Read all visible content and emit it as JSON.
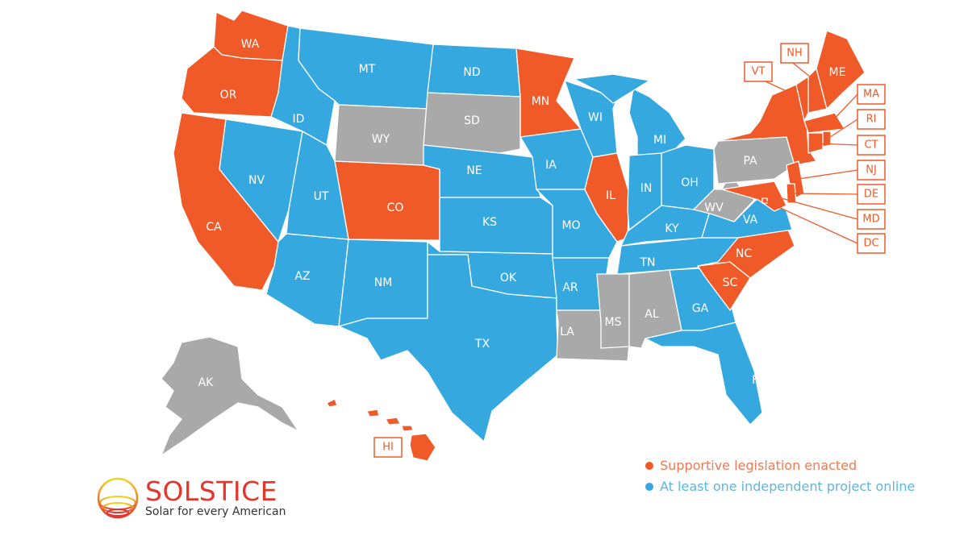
{
  "colors": {
    "supportive": "#ef5a28",
    "online": "#35a8e0",
    "none": "#a9a9a9"
  },
  "states": [
    {
      "code": "WA",
      "status": "supportive"
    },
    {
      "code": "OR",
      "status": "supportive"
    },
    {
      "code": "CA",
      "status": "supportive"
    },
    {
      "code": "NV",
      "status": "online"
    },
    {
      "code": "ID",
      "status": "online"
    },
    {
      "code": "MT",
      "status": "online"
    },
    {
      "code": "WY",
      "status": "none"
    },
    {
      "code": "ND",
      "status": "online"
    },
    {
      "code": "SD",
      "status": "none"
    },
    {
      "code": "NE",
      "status": "online"
    },
    {
      "code": "CO",
      "status": "supportive"
    },
    {
      "code": "UT",
      "status": "online"
    },
    {
      "code": "AZ",
      "status": "online"
    },
    {
      "code": "NM",
      "status": "online"
    },
    {
      "code": "KS",
      "status": "online"
    },
    {
      "code": "OK",
      "status": "online"
    },
    {
      "code": "TX",
      "status": "online"
    },
    {
      "code": "MN",
      "status": "supportive"
    },
    {
      "code": "IA",
      "status": "online"
    },
    {
      "code": "MO",
      "status": "online"
    },
    {
      "code": "AR",
      "status": "online"
    },
    {
      "code": "LA",
      "status": "none"
    },
    {
      "code": "WI",
      "status": "online"
    },
    {
      "code": "IL",
      "status": "supportive"
    },
    {
      "code": "MI",
      "status": "online"
    },
    {
      "code": "IN",
      "status": "online"
    },
    {
      "code": "OH",
      "status": "online"
    },
    {
      "code": "KY",
      "status": "online"
    },
    {
      "code": "TN",
      "status": "online"
    },
    {
      "code": "MS",
      "status": "none"
    },
    {
      "code": "AL",
      "status": "none"
    },
    {
      "code": "GA",
      "status": "online"
    },
    {
      "code": "FL",
      "status": "online"
    },
    {
      "code": "SC",
      "status": "supportive"
    },
    {
      "code": "NC",
      "status": "supportive"
    },
    {
      "code": "VA",
      "status": "online"
    },
    {
      "code": "WV",
      "status": "none"
    },
    {
      "code": "PA",
      "status": "none"
    },
    {
      "code": "NY",
      "status": "supportive"
    },
    {
      "code": "NJ",
      "status": "supportive"
    },
    {
      "code": "DE",
      "status": "supportive"
    },
    {
      "code": "MD",
      "status": "supportive"
    },
    {
      "code": "DC",
      "status": "supportive"
    },
    {
      "code": "VT",
      "status": "supportive"
    },
    {
      "code": "NH",
      "status": "supportive"
    },
    {
      "code": "ME",
      "status": "supportive"
    },
    {
      "code": "MA",
      "status": "supportive"
    },
    {
      "code": "CT",
      "status": "supportive"
    },
    {
      "code": "RI",
      "status": "supportive"
    },
    {
      "code": "AK",
      "status": "none"
    },
    {
      "code": "HI",
      "status": "supportive"
    }
  ],
  "legend": [
    {
      "label": "Supportive legislation enacted",
      "status": "supportive"
    },
    {
      "label": "At least one independent project online",
      "status": "online"
    }
  ],
  "logo": {
    "name": "SOLSTICE",
    "tagline": "Solar for every American"
  }
}
